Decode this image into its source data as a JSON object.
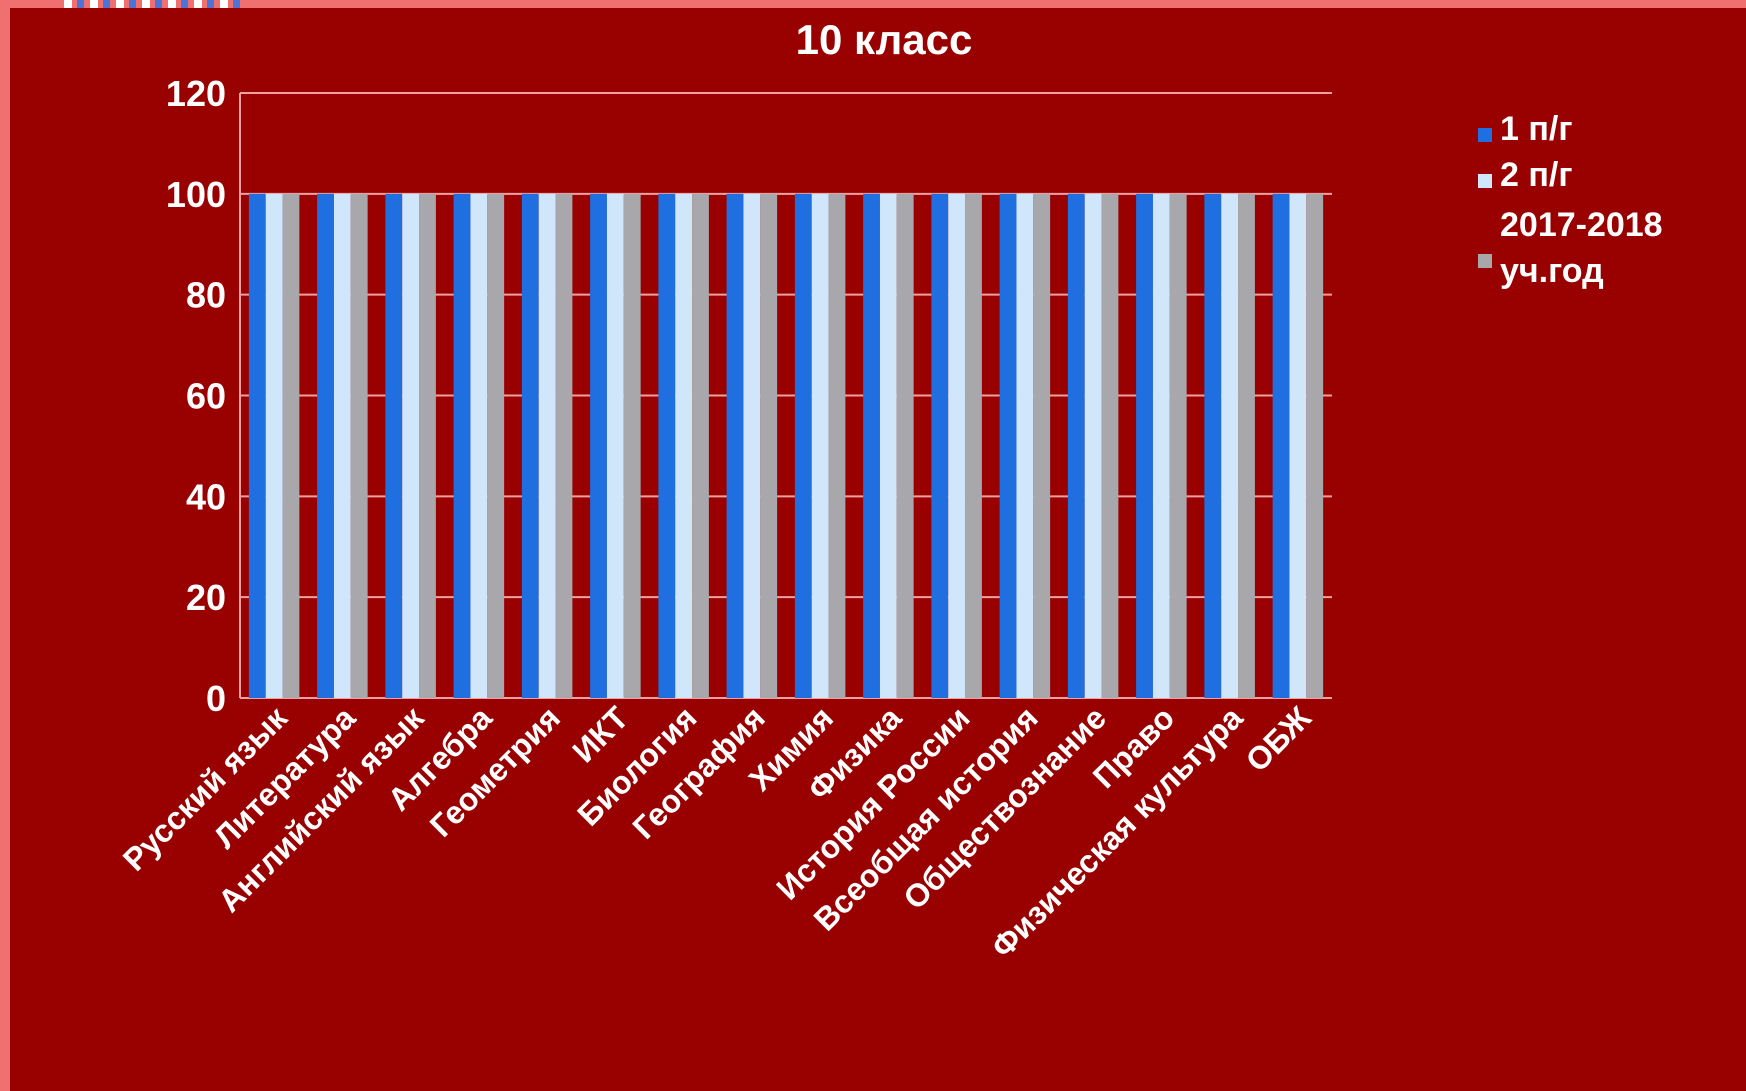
{
  "chart_data": {
    "type": "bar",
    "title": "10 класс",
    "categories": [
      "Русский язык",
      "Литература",
      "Английский  язык",
      "Алгебра",
      "Геометрия",
      "ИКТ",
      "Биология",
      "География",
      "Химия",
      "Физика",
      "История России",
      "Всеобщая история",
      "Обществознание",
      "Право",
      "Физическая культура",
      "ОБЖ"
    ],
    "series": [
      {
        "name": "1 п/г",
        "color": "#1f6fe0",
        "values": [
          100,
          100,
          100,
          100,
          100,
          100,
          100,
          100,
          100,
          100,
          100,
          100,
          100,
          100,
          100,
          100
        ]
      },
      {
        "name": "2 п/г",
        "color": "#cfe6fb",
        "values": [
          100,
          100,
          100,
          100,
          100,
          100,
          100,
          100,
          100,
          100,
          100,
          100,
          100,
          100,
          100,
          100
        ]
      },
      {
        "name": "2017-2018 уч.год",
        "color": "#a8a8ac",
        "values": [
          100,
          100,
          100,
          100,
          100,
          100,
          100,
          100,
          100,
          100,
          100,
          100,
          100,
          100,
          100,
          100
        ]
      }
    ],
    "ylim": [
      0,
      120
    ],
    "yticks": [
      0,
      20,
      40,
      60,
      80,
      100,
      120
    ],
    "grid": true,
    "legend_position": "right"
  },
  "colors": {
    "background": "#990000",
    "gridline": "#f0a0a0",
    "text": "#ffffff"
  }
}
